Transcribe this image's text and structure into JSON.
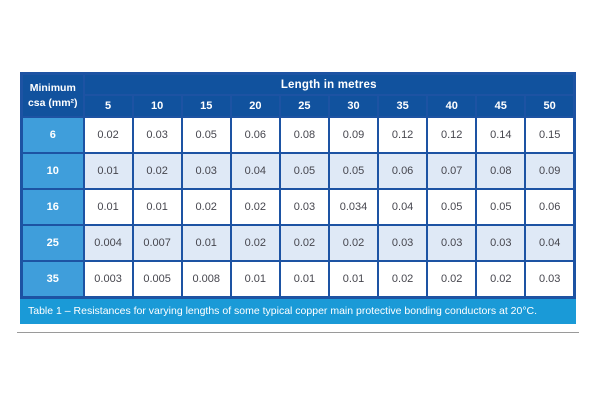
{
  "colors": {
    "page_bg": "#ffffff",
    "header_dark_blue": "#11529e",
    "border_blue": "#1d53a3",
    "row_header_blue": "#3f9edb",
    "row_tint_blue": "#dfe9f6",
    "row_white": "#ffffff",
    "caption_blue": "#1a9ad7",
    "value_text": "#46464e",
    "divider_gray": "#9a9a9a"
  },
  "table": {
    "corner_header_line1": "Minimum",
    "corner_header_line2": "csa (mm²)",
    "group_header": "Length in metres",
    "column_headers": [
      "5",
      "10",
      "15",
      "20",
      "25",
      "30",
      "35",
      "40",
      "45",
      "50"
    ],
    "rows": [
      {
        "label": "6",
        "values": [
          "0.02",
          "0.03",
          "0.05",
          "0.06",
          "0.08",
          "0.09",
          "0.12",
          "0.12",
          "0.14",
          "0.15"
        ]
      },
      {
        "label": "10",
        "values": [
          "0.01",
          "0.02",
          "0.03",
          "0.04",
          "0.05",
          "0.05",
          "0.06",
          "0.07",
          "0.08",
          "0.09"
        ]
      },
      {
        "label": "16",
        "values": [
          "0.01",
          "0.01",
          "0.02",
          "0.02",
          "0.03",
          "0.034",
          "0.04",
          "0.05",
          "0.05",
          "0.06"
        ]
      },
      {
        "label": "25",
        "values": [
          "0.004",
          "0.007",
          "0.01",
          "0.02",
          "0.02",
          "0.02",
          "0.03",
          "0.03",
          "0.03",
          "0.04"
        ]
      },
      {
        "label": "35",
        "values": [
          "0.003",
          "0.005",
          "0.008",
          "0.01",
          "0.01",
          "0.01",
          "0.02",
          "0.02",
          "0.02",
          "0.03"
        ]
      }
    ],
    "caption": "Table 1 – Resistances for varying lengths of some typical copper main protective bonding conductors at 20°C."
  }
}
